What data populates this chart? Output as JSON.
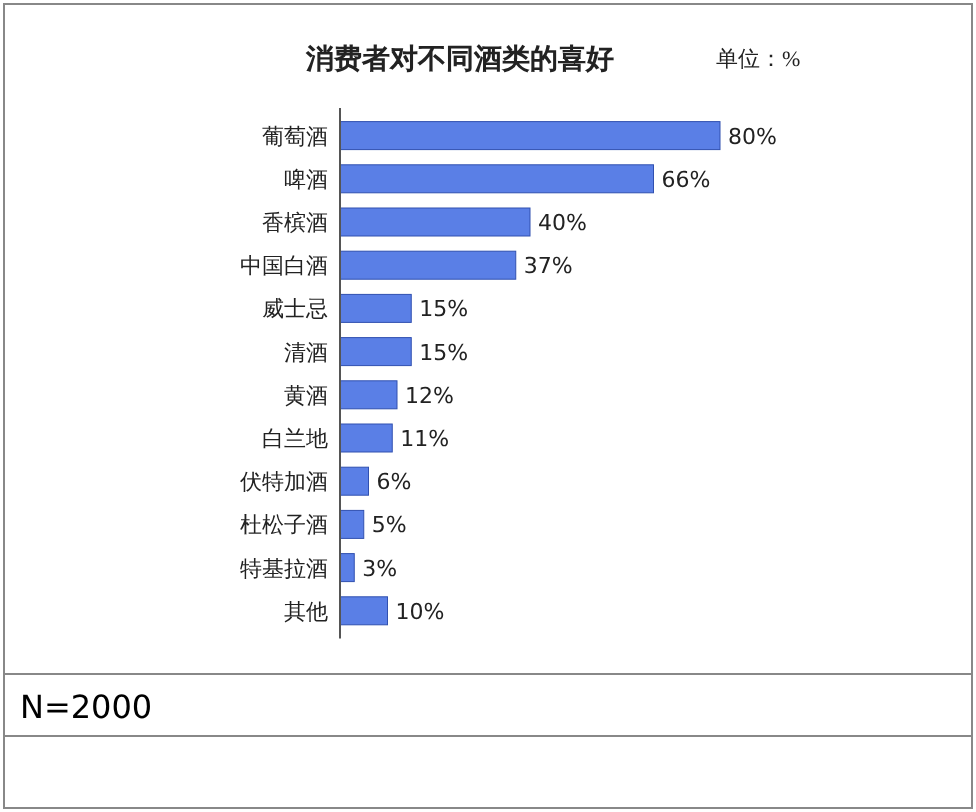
{
  "chart_data": {
    "type": "bar",
    "orientation": "horizontal",
    "title": "消费者对不同酒类的喜好",
    "subtitle": "单位：%",
    "categories": [
      "葡萄酒",
      "啤酒",
      "香槟酒",
      "中国白酒",
      "威士忌",
      "清酒",
      "黄酒",
      "白兰地",
      "伏特加酒",
      "杜松子酒",
      "特基拉酒",
      "其他"
    ],
    "values": [
      80,
      66,
      40,
      37,
      15,
      15,
      12,
      11,
      6,
      5,
      3,
      10
    ],
    "value_labels": [
      "80%",
      "66%",
      "40%",
      "37%",
      "15%",
      "15%",
      "12%",
      "11%",
      "6%",
      "5%",
      "3%",
      "10%"
    ],
    "color": "#5a7fe6",
    "annotations": [
      "N=2000"
    ]
  }
}
